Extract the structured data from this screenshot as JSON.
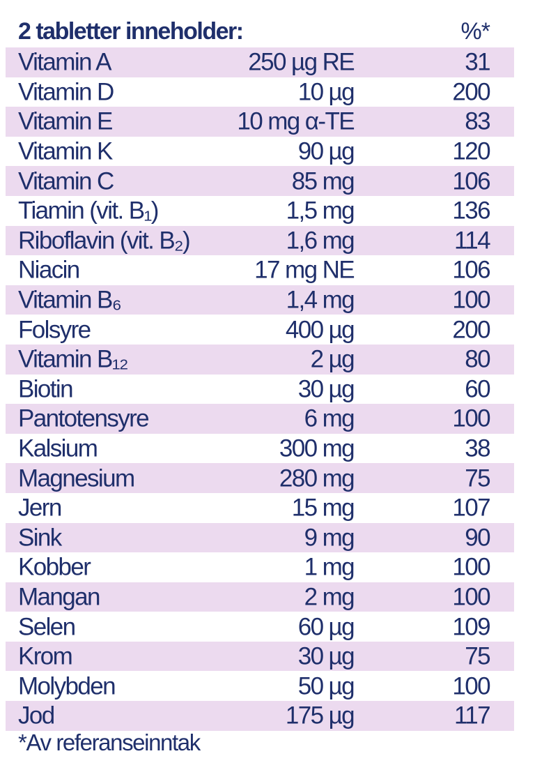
{
  "header": {
    "title": "2 tabletter inneholder:",
    "percent_label": "%*"
  },
  "rows": [
    {
      "name": "Vitamin A",
      "amount": "250 µg RE",
      "percent": "31"
    },
    {
      "name": "Vitamin D",
      "amount": "10 µg",
      "percent": "200"
    },
    {
      "name": "Vitamin E",
      "amount": "10 mg α-TE",
      "percent": "83"
    },
    {
      "name": "Vitamin K",
      "amount": "90 µg",
      "percent": "120"
    },
    {
      "name": "Vitamin C",
      "amount": "85 mg",
      "percent": "106"
    },
    {
      "name": "Tiamin (vit. B₁)",
      "amount": "1,5 mg",
      "percent": "136"
    },
    {
      "name": "Riboflavin (vit. B₂)",
      "amount": "1,6 mg",
      "percent": "114"
    },
    {
      "name": "Niacin",
      "amount": "17 mg NE",
      "percent": "106"
    },
    {
      "name": "Vitamin B₆",
      "amount": "1,4 mg",
      "percent": "100"
    },
    {
      "name": "Folsyre",
      "amount": "400 µg",
      "percent": "200"
    },
    {
      "name": "Vitamin B₁₂",
      "amount": "2 µg",
      "percent": "80"
    },
    {
      "name": "Biotin",
      "amount": "30 µg",
      "percent": "60"
    },
    {
      "name": "Pantotensyre",
      "amount": "6 mg",
      "percent": "100"
    },
    {
      "name": "Kalsium",
      "amount": "300 mg",
      "percent": "38"
    },
    {
      "name": "Magnesium",
      "amount": "280 mg",
      "percent": "75"
    },
    {
      "name": "Jern",
      "amount": "15 mg",
      "percent": "107"
    },
    {
      "name": "Sink",
      "amount": "9 mg",
      "percent": "90"
    },
    {
      "name": "Kobber",
      "amount": "1 mg",
      "percent": "100"
    },
    {
      "name": "Mangan",
      "amount": "2 mg",
      "percent": "100"
    },
    {
      "name": "Selen",
      "amount": "60 µg",
      "percent": "109"
    },
    {
      "name": "Krom",
      "amount": "30 µg",
      "percent": "75"
    },
    {
      "name": "Molybden",
      "amount": "50 µg",
      "percent": "100"
    },
    {
      "name": "Jod",
      "amount": "175 µg",
      "percent": "117"
    }
  ],
  "footnote": "*Av referanseinntak",
  "colors": {
    "text": "#1f2f6b",
    "row_shade": "#ecdaef"
  }
}
